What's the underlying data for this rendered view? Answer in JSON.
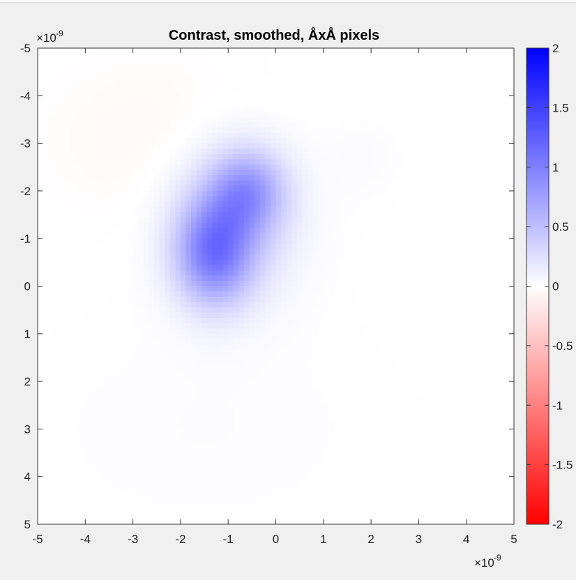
{
  "chart_data": {
    "type": "heatmap",
    "title": "Contrast, smoothed, ÅxÅ pixels",
    "xlabel": "",
    "ylabel": "",
    "xlim": [
      -5e-09,
      5e-09
    ],
    "ylim": [
      -5e-09,
      5e-09
    ],
    "y_direction": "reverse",
    "x_ticks": [
      -5,
      -4,
      -3,
      -2,
      -1,
      0,
      1,
      2,
      3,
      4,
      5
    ],
    "y_ticks": [
      -5,
      -4,
      -3,
      -2,
      -1,
      0,
      1,
      2,
      3,
      4,
      5
    ],
    "x_exponent": {
      "base": "×10",
      "power": "-9"
    },
    "y_exponent": {
      "base": "×10",
      "power": "-9"
    },
    "grid": false,
    "colormap": "red-white-blue",
    "colors": {
      "negative": "#ff0000",
      "zero": "#ffffff",
      "positive": "#0000ff"
    },
    "clim": [
      -2,
      2
    ],
    "colorbar_ticks": [
      2,
      1.5,
      1,
      0.5,
      0,
      -0.5,
      -1,
      -1.5,
      -2
    ],
    "colorbar_tick_labels": [
      "2",
      "1.5",
      "1",
      "0.5",
      "0",
      "-0.5",
      "-1",
      "-1.5",
      "-2"
    ],
    "features": [
      {
        "x": -1.3,
        "y": -0.7,
        "sx": 0.55,
        "sy": 0.75,
        "value": 0.9
      },
      {
        "x": -0.6,
        "y": -2.0,
        "sx": 0.55,
        "sy": 0.6,
        "value": 0.65
      },
      {
        "x": -0.9,
        "y": -1.3,
        "sx": 0.9,
        "sy": 1.1,
        "value": 0.35
      },
      {
        "x": -2.6,
        "y": -3.1,
        "sx": 1.6,
        "sy": 1.2,
        "value": -0.05
      },
      {
        "x": 1.8,
        "y": -2.7,
        "sx": 0.6,
        "sy": 0.6,
        "value": 0.03
      },
      {
        "x": -1.5,
        "y": 3.0,
        "sx": 2.6,
        "sy": 1.6,
        "value": 0.02
      }
    ]
  }
}
